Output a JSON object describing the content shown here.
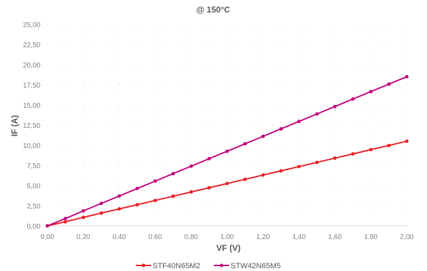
{
  "chart_data": {
    "type": "line",
    "title": "@ 150°C",
    "xlabel": "VF (V)",
    "ylabel": "IF (A)",
    "xlim": [
      0,
      2
    ],
    "ylim": [
      0,
      25
    ],
    "x_ticks": [
      "0,00",
      "0,20",
      "0.40",
      "0.60",
      "0,80",
      "1.00",
      "1,20",
      "1,40",
      "1,60",
      "1.80",
      "2,00"
    ],
    "y_ticks": [
      "0,00",
      "2,50",
      "5,00",
      "7,50",
      "10,00",
      "12,50",
      "15,00",
      "17,50",
      "20,00",
      "22,50",
      "25,00"
    ],
    "grid": true,
    "legend_position": "bottom",
    "x": [
      0,
      0.1,
      0.2,
      0.3,
      0.4,
      0.5,
      0.6,
      0.7,
      0.8,
      0.9,
      1.0,
      1.1,
      1.2,
      1.3,
      1.4,
      1.5,
      1.6,
      1.7,
      1.8,
      1.9,
      2.0
    ],
    "series": [
      {
        "name": "STF40N65M2",
        "color": "#e8232a",
        "values": [
          0.0,
          0.5,
          1.05,
          1.58,
          2.1,
          2.62,
          3.15,
          3.67,
          4.2,
          4.72,
          5.25,
          5.77,
          6.3,
          6.82,
          7.35,
          7.87,
          8.4,
          8.92,
          9.45,
          9.97,
          10.5
        ]
      },
      {
        "name": "STW42N65M5",
        "color": "#c4087e",
        "values": [
          0.0,
          0.9,
          1.85,
          2.78,
          3.7,
          4.63,
          5.55,
          6.48,
          7.4,
          8.33,
          9.25,
          10.18,
          11.1,
          12.03,
          12.95,
          13.88,
          14.8,
          15.73,
          16.65,
          17.58,
          18.5
        ]
      }
    ]
  }
}
